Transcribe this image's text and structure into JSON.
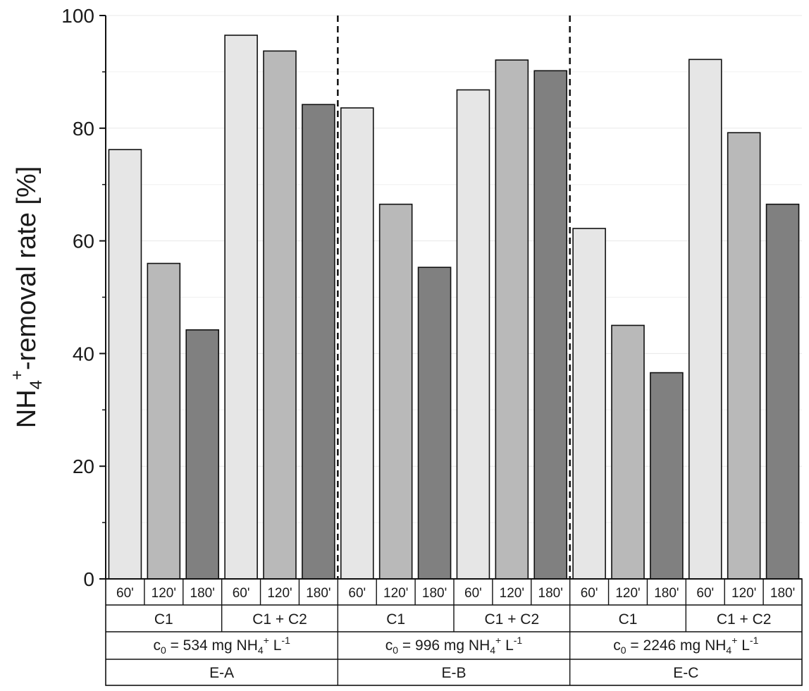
{
  "chart_data": {
    "type": "bar",
    "ylabel": {
      "main": "NH",
      "sub": "4",
      "sup": "+",
      "rest": "-removal rate [%]"
    },
    "ylim": [
      0,
      100
    ],
    "yticks": [
      "0",
      "20",
      "40",
      "60",
      "80",
      "100"
    ],
    "grid": true,
    "time_labels": [
      "60'",
      "120'",
      "180'"
    ],
    "series_colors": [
      "#e6e6e6",
      "#b9b9b9",
      "#808080"
    ],
    "experiments": [
      {
        "name": "E-A",
        "condition": {
          "pre": "c",
          "pre_sub": "0",
          "mid": " = 534 mg NH",
          "mid_sub": "4",
          "mid_sup": "+",
          "post": " L",
          "post_sup": "-1"
        },
        "treatments": [
          {
            "name": "C1",
            "values": [
              76.2,
              56.0,
              44.2
            ]
          },
          {
            "name": "C1 + C2",
            "values": [
              96.5,
              93.7,
              84.2
            ]
          }
        ]
      },
      {
        "name": "E-B",
        "condition": {
          "pre": "c",
          "pre_sub": "0",
          "mid": " = 996 mg NH",
          "mid_sub": "4",
          "mid_sup": "+",
          "post": " L",
          "post_sup": "-1"
        },
        "treatments": [
          {
            "name": "C1",
            "values": [
              83.6,
              66.5,
              55.3
            ]
          },
          {
            "name": "C1 + C2",
            "values": [
              86.8,
              92.1,
              90.2
            ]
          }
        ]
      },
      {
        "name": "E-C",
        "condition": {
          "pre": "c",
          "pre_sub": "0",
          "mid": " = 2246 mg NH",
          "mid_sub": "4",
          "mid_sup": "+",
          "post": " L",
          "post_sup": "-1"
        },
        "treatments": [
          {
            "name": "C1",
            "values": [
              62.2,
              45.0,
              36.6
            ]
          },
          {
            "name": "C1 + C2",
            "values": [
              92.2,
              79.2,
              66.5
            ]
          }
        ]
      }
    ]
  }
}
